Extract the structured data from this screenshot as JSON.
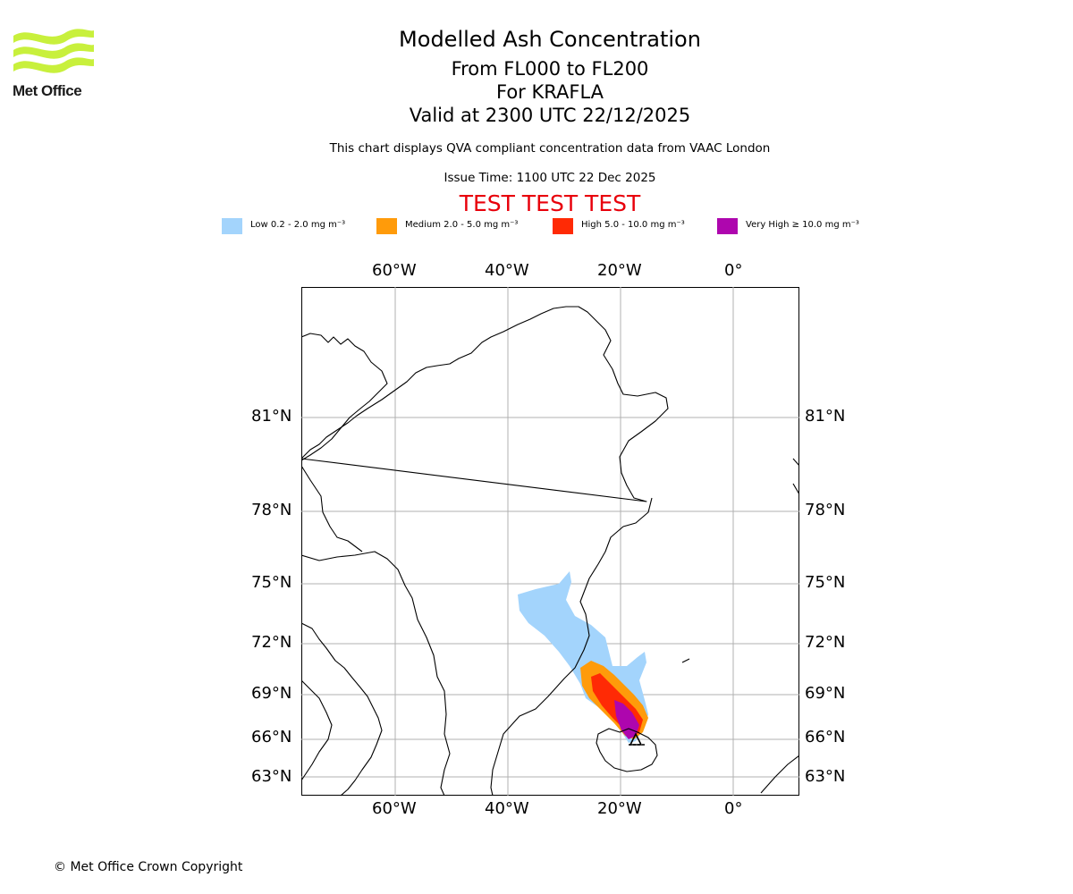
{
  "header": {
    "logo_text": "Met Office",
    "title": "Modelled Ash Concentration",
    "level_range": "From FL000 to FL200",
    "volcano": "For KRAFLA",
    "valid_time": "Valid at 2300 UTC 22/12/2025",
    "description": "This chart displays QVA compliant concentration data from VAAC London",
    "issue_time": "Issue Time: 1100 UTC 22 Dec 2025",
    "test_banner": "TEST TEST TEST"
  },
  "legend": [
    {
      "label": "Low 0.2 - 2.0 mg m⁻³",
      "color": "#a3d4fc"
    },
    {
      "label": "Medium 2.0 - 5.0 mg m⁻³",
      "color": "#ff9b0a"
    },
    {
      "label": "High 5.0 - 10.0 mg m⁻³",
      "color": "#ff2a05"
    },
    {
      "label": "Very High ≥ 10.0 mg m⁻³",
      "color": "#ae06ae"
    }
  ],
  "axes": {
    "longitude_ticks": [
      "60°W",
      "40°W",
      "20°W",
      "0°"
    ],
    "latitude_ticks": [
      "81°N",
      "78°N",
      "75°N",
      "72°N",
      "69°N",
      "66°N",
      "63°N"
    ]
  },
  "footer": {
    "copyright": "© Met Office Crown Copyright"
  },
  "colors": {
    "coastline": "#000000",
    "gridline": "#b0b0b0",
    "logo_green": "#c8f03c"
  }
}
